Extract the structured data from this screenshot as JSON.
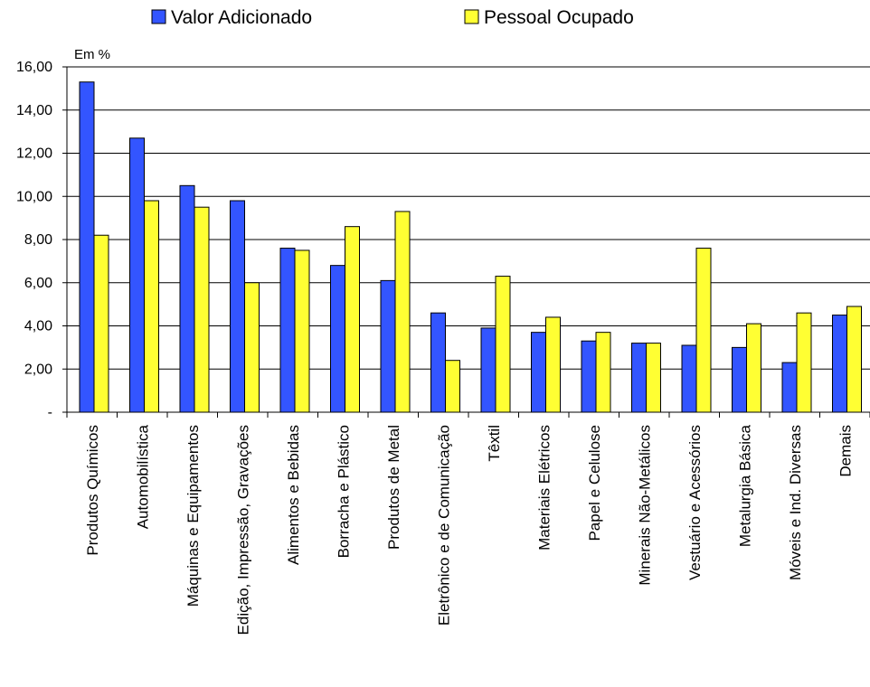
{
  "chart_data": {
    "type": "bar",
    "unit_label": "Em %",
    "categories": [
      "Produtos Químicos",
      "Automobilística",
      "Máquinas e Equipamentos",
      "Edição, Impressão, Gravações",
      "Alimentos e Bebidas",
      "Borracha e Plástico",
      "Produtos de Metal",
      "Eletrônico e de Comunicação",
      "Têxtil",
      "Materiais Elétricos",
      "Papel e Celulose",
      "Minerais Não-Metálicos",
      "Vestuário e Acessórios",
      "Metalurgia Básica",
      "Móveis e Ind. Diversas",
      "Demais"
    ],
    "series": [
      {
        "name": "Valor Adicionado",
        "color": "#3355FF",
        "values": [
          15.3,
          12.7,
          10.5,
          9.8,
          7.6,
          6.8,
          6.1,
          4.6,
          3.9,
          3.7,
          3.3,
          3.2,
          3.1,
          3.0,
          2.3,
          4.5
        ]
      },
      {
        "name": "Pessoal Ocupado",
        "color": "#FFFF33",
        "values": [
          8.2,
          9.8,
          9.5,
          6.0,
          7.5,
          8.6,
          9.3,
          2.4,
          6.3,
          4.4,
          3.7,
          3.2,
          7.6,
          4.1,
          4.6,
          4.9
        ]
      }
    ],
    "ylim": [
      0,
      16
    ],
    "yticks": [
      "-",
      "2,00",
      "4,00",
      "6,00",
      "8,00",
      "10,00",
      "12,00",
      "14,00",
      "16,00"
    ],
    "grid": true,
    "legend_position": "top"
  }
}
